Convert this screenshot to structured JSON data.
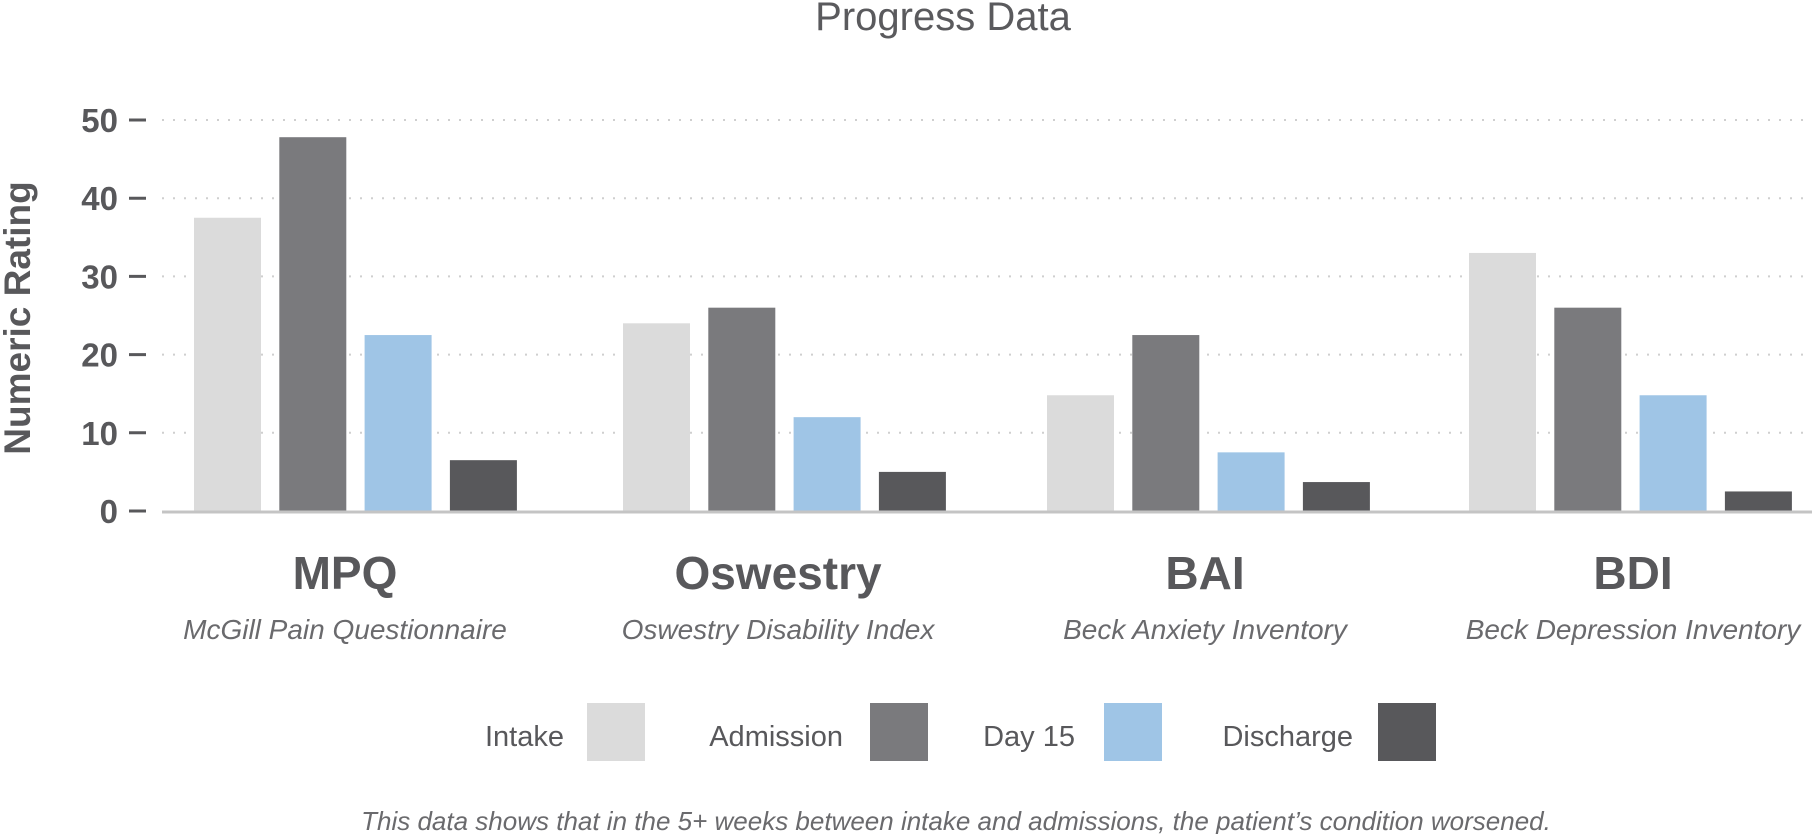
{
  "chart_data": {
    "type": "bar",
    "title": "Progress Data",
    "ylabel": "Numeric Rating",
    "xlabel": "",
    "ylim": [
      0,
      50
    ],
    "yticks": [
      0,
      10,
      20,
      30,
      40,
      50
    ],
    "grid": true,
    "legend_position": "bottom",
    "categories": [
      "MPQ",
      "Oswestry",
      "BAI",
      "BDI"
    ],
    "category_subtitles": [
      "McGill Pain Questionnaire",
      "Oswestry Disability Index",
      "Beck Anxiety Inventory",
      "Beck Depression Inventory"
    ],
    "series": [
      {
        "name": "Intake",
        "color": "#dbdbdb",
        "values": [
          37.5,
          24,
          14.8,
          33
        ]
      },
      {
        "name": "Admission",
        "color": "#7a7a7d",
        "values": [
          47.8,
          26,
          22.5,
          26
        ]
      },
      {
        "name": "Day 15",
        "color": "#9fc5e6",
        "values": [
          22.5,
          12,
          7.5,
          14.8
        ]
      },
      {
        "name": "Discharge",
        "color": "#58585b",
        "values": [
          6.5,
          5,
          3.7,
          2.5
        ]
      }
    ],
    "caption": "This data shows that in the 5+ weeks between intake and admissions, the patient’s condition worsened."
  }
}
